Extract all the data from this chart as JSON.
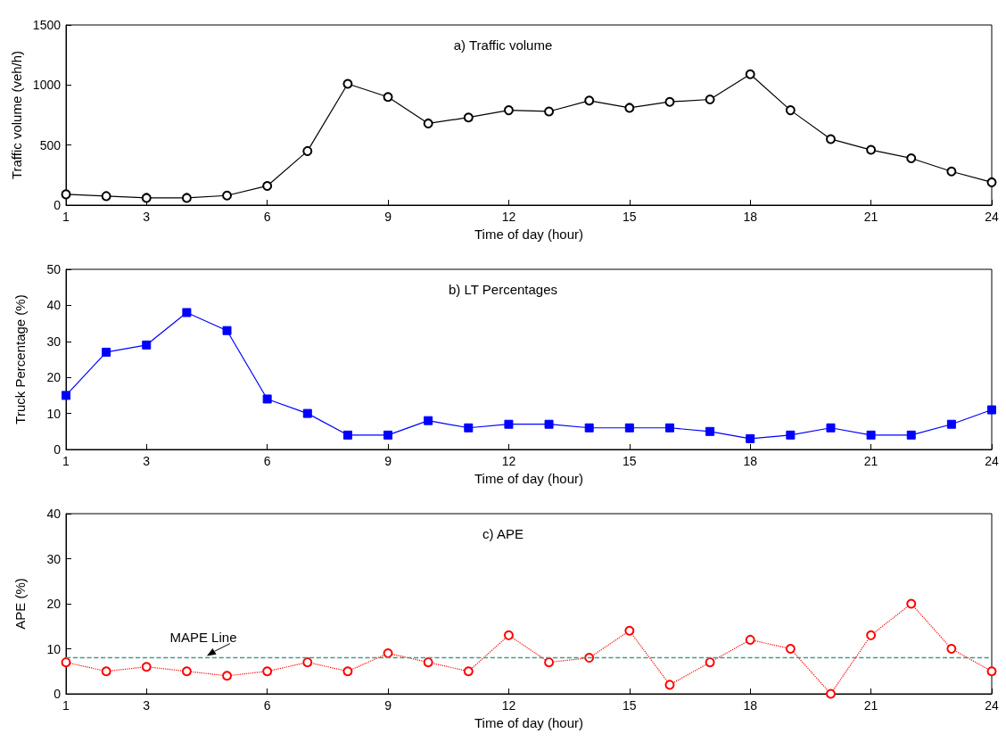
{
  "chart_data": [
    {
      "type": "line",
      "title": "a) Traffic volume",
      "xlabel": "Time of day (hour)",
      "ylabel": "Traffic volume (veh/h)",
      "x": [
        1,
        2,
        3,
        4,
        5,
        6,
        7,
        8,
        9,
        10,
        11,
        12,
        13,
        14,
        15,
        16,
        17,
        18,
        19,
        20,
        21,
        22,
        23,
        24
      ],
      "series": [
        {
          "color": "#000000",
          "values": [
            90,
            75,
            60,
            60,
            80,
            160,
            450,
            1010,
            900,
            680,
            730,
            790,
            780,
            870,
            810,
            860,
            880,
            1090,
            790,
            550,
            460,
            390,
            280,
            190
          ]
        }
      ],
      "xlim": [
        1,
        24
      ],
      "xticks": [
        1,
        3,
        6,
        9,
        12,
        15,
        18,
        21,
        24
      ],
      "ylim": [
        0,
        1500
      ],
      "yticks": [
        0,
        500,
        1000,
        1500
      ],
      "marker": "circle",
      "line_style": "solid",
      "grid": false
    },
    {
      "type": "line",
      "title": "b) LT Percentages",
      "xlabel": "Time of day (hour)",
      "ylabel": "Truck Percentage (%)",
      "x": [
        1,
        2,
        3,
        4,
        5,
        6,
        7,
        8,
        9,
        10,
        11,
        12,
        13,
        14,
        15,
        16,
        17,
        18,
        19,
        20,
        21,
        22,
        23,
        24
      ],
      "series": [
        {
          "color": "#0000ff",
          "values": [
            15,
            27,
            29,
            38,
            33,
            14,
            10,
            4,
            4,
            8,
            6,
            7,
            7,
            6,
            6,
            6,
            5,
            3,
            4,
            6,
            4,
            4,
            7,
            11
          ]
        }
      ],
      "xlim": [
        1,
        24
      ],
      "xticks": [
        1,
        3,
        6,
        9,
        12,
        15,
        18,
        21,
        24
      ],
      "ylim": [
        0,
        50
      ],
      "yticks": [
        0,
        10,
        20,
        30,
        40,
        50
      ],
      "marker": "square",
      "line_style": "solid",
      "grid": false
    },
    {
      "type": "line",
      "title": "c) APE",
      "xlabel": "Time of day (hour)",
      "ylabel": "APE (%)",
      "x": [
        1,
        2,
        3,
        4,
        5,
        6,
        7,
        8,
        9,
        10,
        11,
        12,
        13,
        14,
        15,
        16,
        17,
        18,
        19,
        20,
        21,
        22,
        23,
        24
      ],
      "series": [
        {
          "color": "#ff0000",
          "values": [
            7,
            5,
            6,
            5,
            4,
            5,
            7,
            5,
            9,
            7,
            5,
            13,
            7,
            8,
            14,
            2,
            7,
            12,
            10,
            0,
            13,
            20,
            10,
            5
          ]
        }
      ],
      "xlim": [
        1,
        24
      ],
      "xticks": [
        1,
        3,
        6,
        9,
        12,
        15,
        18,
        21,
        24
      ],
      "ylim": [
        0,
        40
      ],
      "yticks": [
        0,
        10,
        20,
        30,
        40
      ],
      "ref_lines": [
        {
          "axis": "y",
          "value": 8,
          "label": null,
          "color": "#4a9a8a",
          "line_style": "dashed"
        }
      ],
      "annotations": [
        {
          "text": "MAPE Line",
          "x": 4.5,
          "y": 8
        }
      ],
      "marker": "circle",
      "line_style": "dotted",
      "grid": false
    }
  ]
}
